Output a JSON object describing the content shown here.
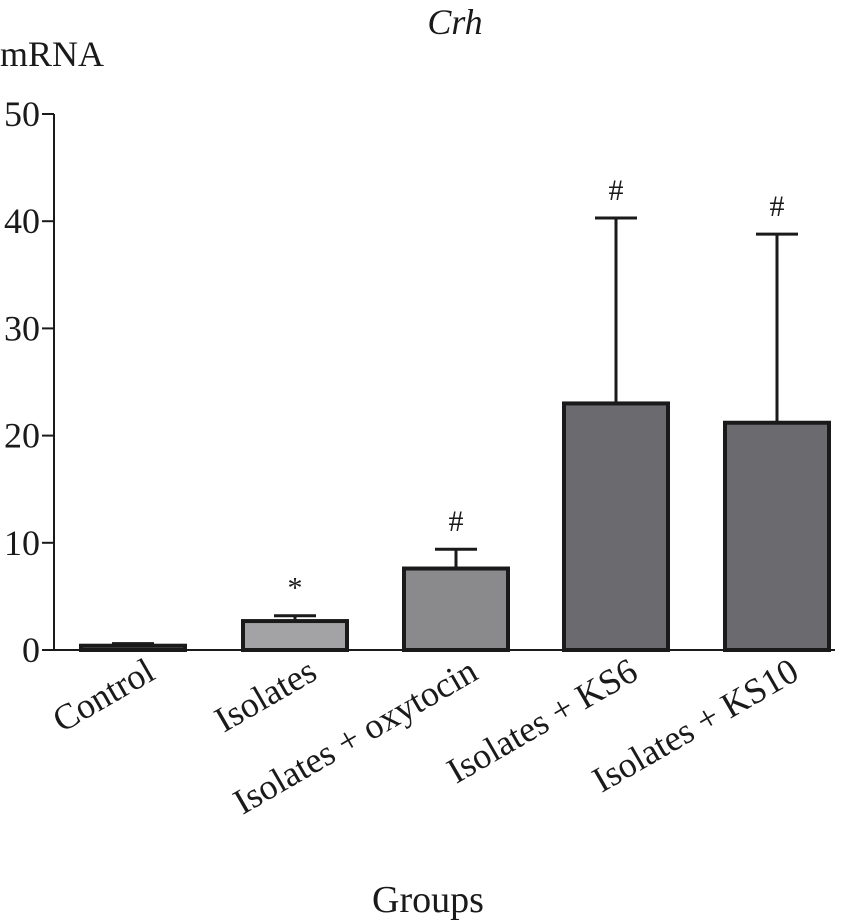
{
  "chart_data": {
    "type": "bar",
    "title": "Crh",
    "ylabel": "mRNA",
    "xlabel": "Groups",
    "ylim": [
      0,
      50
    ],
    "yticks": [
      "0",
      "10",
      "20",
      "30",
      "40",
      "50"
    ],
    "categories": [
      "Control",
      "Isolates",
      "Isolates + oxytocin",
      "Isolates + KS6",
      "Isolates + KS10"
    ],
    "values": [
      0.4,
      2.7,
      7.6,
      23.0,
      21.2
    ],
    "errors": [
      0.2,
      0.5,
      1.8,
      17.3,
      17.6
    ],
    "significance": [
      "",
      "*",
      "#",
      "#",
      "#"
    ],
    "bar_colors": [
      "#8a8a8c",
      "#a3a3a6",
      "#8a8a8c",
      "#6b6b6f",
      "#6b6b6f"
    ],
    "edge_color": "#1a1a1a",
    "grid": false
  }
}
